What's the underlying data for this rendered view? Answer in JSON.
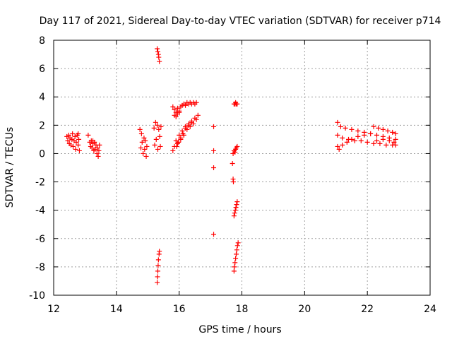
{
  "chart_data": {
    "type": "scatter",
    "title": "Day 117 of 2021, Sidereal Day-to-day VTEC variation (SDTVAR) for receiver p714",
    "xlabel": "GPS time / hours",
    "ylabel": "SDTVAR / TECUs",
    "xlim": [
      12,
      24
    ],
    "ylim": [
      -10,
      8
    ],
    "xticks": [
      "12",
      "14",
      "16",
      "18",
      "20",
      "22",
      "24"
    ],
    "yticks": [
      "8",
      "6",
      "4",
      "2",
      "0",
      "-2",
      "-4",
      "-6",
      "-8",
      "-10"
    ],
    "grid": true,
    "marker": "+",
    "color": "#ff0000",
    "series": [
      {
        "name": "SDTVAR",
        "points": [
          [
            12.42,
            1.2
          ],
          [
            12.45,
            0.9
          ],
          [
            12.48,
            1.3
          ],
          [
            12.5,
            0.7
          ],
          [
            12.52,
            1.1
          ],
          [
            12.55,
            0.6
          ],
          [
            12.58,
            1.0
          ],
          [
            12.6,
            1.4
          ],
          [
            12.62,
            0.5
          ],
          [
            12.65,
            0.9
          ],
          [
            12.68,
            1.2
          ],
          [
            12.7,
            0.3
          ],
          [
            12.72,
            0.8
          ],
          [
            12.75,
            1.3
          ],
          [
            12.78,
            0.6
          ],
          [
            12.8,
            1.0
          ],
          [
            12.82,
            0.2
          ],
          [
            12.78,
            1.4
          ],
          [
            13.1,
            1.3
          ],
          [
            13.15,
            0.8
          ],
          [
            13.18,
            0.5
          ],
          [
            13.2,
            0.9
          ],
          [
            13.22,
            0.4
          ],
          [
            13.25,
            0.7
          ],
          [
            13.28,
            0.2
          ],
          [
            13.3,
            0.8
          ],
          [
            13.32,
            0.3
          ],
          [
            13.35,
            0.6
          ],
          [
            13.38,
            0.0
          ],
          [
            13.4,
            0.4
          ],
          [
            13.42,
            -0.2
          ],
          [
            13.44,
            0.2
          ],
          [
            13.46,
            0.6
          ],
          [
            13.25,
            0.9
          ],
          [
            14.75,
            1.7
          ],
          [
            14.78,
            0.4
          ],
          [
            14.8,
            1.4
          ],
          [
            14.82,
            0.8
          ],
          [
            14.85,
            0.0
          ],
          [
            14.88,
            1.1
          ],
          [
            14.9,
            0.3
          ],
          [
            14.92,
            0.9
          ],
          [
            14.95,
            -0.2
          ],
          [
            14.97,
            0.5
          ],
          [
            15.2,
            1.8
          ],
          [
            15.22,
            0.6
          ],
          [
            15.25,
            2.2
          ],
          [
            15.27,
            1.0
          ],
          [
            15.3,
            2.0
          ],
          [
            15.32,
            0.3
          ],
          [
            15.35,
            1.7
          ],
          [
            15.38,
            1.2
          ],
          [
            15.4,
            0.5
          ],
          [
            15.42,
            1.9
          ],
          [
            15.3,
            7.4
          ],
          [
            15.32,
            7.2
          ],
          [
            15.34,
            7.0
          ],
          [
            15.35,
            6.8
          ],
          [
            15.37,
            6.5
          ],
          [
            15.3,
            -9.1
          ],
          [
            15.31,
            -8.7
          ],
          [
            15.32,
            -8.3
          ],
          [
            15.33,
            -7.9
          ],
          [
            15.34,
            -7.5
          ],
          [
            15.36,
            -7.1
          ],
          [
            15.37,
            -6.9
          ],
          [
            15.8,
            0.2
          ],
          [
            15.85,
            0.5
          ],
          [
            15.9,
            0.9
          ],
          [
            15.95,
            0.7
          ],
          [
            16.0,
            1.3
          ],
          [
            16.05,
            1.0
          ],
          [
            16.1,
            1.6
          ],
          [
            16.15,
            1.3
          ],
          [
            16.2,
            1.9
          ],
          [
            16.25,
            1.7
          ],
          [
            16.3,
            2.1
          ],
          [
            16.35,
            1.9
          ],
          [
            16.4,
            2.3
          ],
          [
            16.45,
            2.1
          ],
          [
            16.5,
            2.5
          ],
          [
            16.55,
            2.4
          ],
          [
            16.6,
            2.7
          ],
          [
            15.92,
            0.5
          ],
          [
            15.98,
            0.8
          ],
          [
            16.05,
            1.1
          ],
          [
            16.12,
            1.4
          ],
          [
            16.2,
            1.8
          ],
          [
            16.3,
            2.0
          ],
          [
            16.4,
            2.2
          ],
          [
            15.8,
            3.3
          ],
          [
            15.85,
            3.1
          ],
          [
            15.9,
            2.9
          ],
          [
            15.95,
            3.2
          ],
          [
            16.0,
            3.0
          ],
          [
            16.05,
            3.3
          ],
          [
            16.1,
            3.4
          ],
          [
            16.15,
            3.5
          ],
          [
            16.2,
            3.4
          ],
          [
            16.25,
            3.6
          ],
          [
            16.3,
            3.5
          ],
          [
            16.35,
            3.6
          ],
          [
            16.4,
            3.5
          ],
          [
            16.45,
            3.6
          ],
          [
            16.5,
            3.5
          ],
          [
            16.55,
            3.6
          ],
          [
            15.85,
            2.7
          ],
          [
            15.9,
            2.6
          ],
          [
            15.95,
            2.8
          ],
          [
            16.0,
            2.9
          ],
          [
            17.1,
            1.9
          ],
          [
            17.1,
            0.2
          ],
          [
            17.1,
            -1.0
          ],
          [
            17.1,
            -5.7
          ],
          [
            17.7,
            -0.7
          ],
          [
            17.72,
            -1.8
          ],
          [
            17.73,
            -2.0
          ],
          [
            17.72,
            0.0
          ],
          [
            17.75,
            0.2
          ],
          [
            17.78,
            0.1
          ],
          [
            17.8,
            0.3
          ],
          [
            17.82,
            0.4
          ],
          [
            17.85,
            0.5
          ],
          [
            17.75,
            3.5
          ],
          [
            17.78,
            3.5
          ],
          [
            17.8,
            3.6
          ],
          [
            17.82,
            3.5
          ],
          [
            17.85,
            3.5
          ],
          [
            17.75,
            -4.4
          ],
          [
            17.77,
            -4.2
          ],
          [
            17.79,
            -4.0
          ],
          [
            17.81,
            -3.8
          ],
          [
            17.83,
            -3.6
          ],
          [
            17.85,
            -3.4
          ],
          [
            17.75,
            -8.3
          ],
          [
            17.76,
            -8.0
          ],
          [
            17.78,
            -7.7
          ],
          [
            17.8,
            -7.4
          ],
          [
            17.82,
            -7.1
          ],
          [
            17.84,
            -6.8
          ],
          [
            17.86,
            -6.5
          ],
          [
            17.88,
            -6.3
          ],
          [
            21.05,
            2.2
          ],
          [
            21.15,
            1.9
          ],
          [
            21.3,
            1.8
          ],
          [
            21.5,
            1.7
          ],
          [
            21.7,
            1.6
          ],
          [
            21.9,
            1.5
          ],
          [
            22.1,
            1.4
          ],
          [
            22.3,
            1.3
          ],
          [
            22.5,
            1.2
          ],
          [
            22.7,
            1.1
          ],
          [
            22.9,
            1.0
          ],
          [
            21.05,
            1.3
          ],
          [
            21.2,
            1.1
          ],
          [
            21.4,
            1.0
          ],
          [
            21.6,
            0.9
          ],
          [
            21.8,
            0.9
          ],
          [
            22.0,
            0.8
          ],
          [
            22.2,
            0.7
          ],
          [
            22.4,
            0.7
          ],
          [
            22.6,
            0.6
          ],
          [
            22.8,
            0.6
          ],
          [
            22.9,
            0.6
          ],
          [
            21.05,
            0.5
          ],
          [
            21.1,
            0.3
          ],
          [
            21.2,
            0.6
          ],
          [
            21.35,
            0.8
          ],
          [
            21.5,
            1.0
          ],
          [
            21.7,
            1.2
          ],
          [
            21.9,
            1.3
          ],
          [
            22.1,
            1.4
          ],
          [
            22.2,
            1.9
          ],
          [
            22.35,
            1.8
          ],
          [
            22.5,
            1.7
          ],
          [
            22.65,
            1.6
          ],
          [
            22.8,
            1.5
          ],
          [
            22.9,
            1.4
          ],
          [
            22.3,
            0.9
          ],
          [
            22.5,
            1.0
          ],
          [
            22.7,
            0.9
          ],
          [
            22.85,
            0.8
          ]
        ]
      }
    ]
  }
}
